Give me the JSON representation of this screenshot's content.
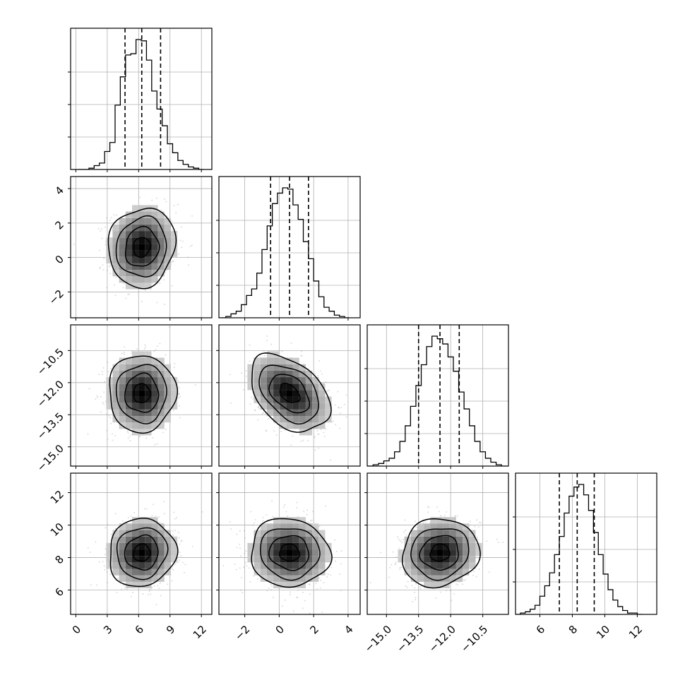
{
  "colors": {
    "frame": "#000000",
    "grid": "#b0b0b0",
    "hist": "#000000",
    "points": "#9a9a9a",
    "density_max": "#000000"
  },
  "chart_data": {
    "type": "corner",
    "dimensions": 4,
    "grid": true,
    "parameters": [
      {
        "range": [
          -0.5,
          13.0
        ],
        "ticks": [
          0,
          3,
          6,
          9,
          12
        ],
        "tick_labels": [
          "0",
          "3",
          "6",
          "9",
          "12"
        ],
        "mean": 6.3,
        "sd": 1.6,
        "quantiles": [
          4.7,
          6.3,
          8.1
        ]
      },
      {
        "range": [
          -3.5,
          4.7
        ],
        "ticks": [
          -2,
          0,
          2,
          4
        ],
        "tick_labels": [
          "−2",
          "0",
          "2",
          "4"
        ],
        "mean": 0.6,
        "sd": 1.15,
        "quantiles": [
          -0.5,
          0.6,
          1.7
        ]
      },
      {
        "range": [
          -15.9,
          -9.3
        ],
        "ticks": [
          -15.0,
          -13.5,
          -12.0,
          -10.5
        ],
        "tick_labels": [
          "−15.0",
          "−13.5",
          "−12.0",
          "−10.5"
        ],
        "mean": -12.5,
        "sd": 0.9,
        "quantiles": [
          -13.5,
          -12.5,
          -11.6
        ]
      },
      {
        "range": [
          4.5,
          13.2
        ],
        "ticks": [
          6,
          8,
          10,
          12
        ],
        "tick_labels": [
          "6",
          "8",
          "10",
          "12"
        ],
        "mean": 8.3,
        "sd": 1.05,
        "quantiles": [
          7.2,
          8.3,
          9.35
        ]
      }
    ],
    "diagonal_histograms": [
      {
        "x_centers": [
          0.5,
          1.0,
          1.5,
          2.0,
          2.5,
          3.0,
          3.5,
          4.0,
          4.5,
          5.0,
          5.5,
          6.0,
          6.5,
          7.0,
          7.5,
          8.0,
          8.5,
          9.0,
          9.5,
          10.0,
          10.5,
          11.0,
          11.5,
          12.0
        ],
        "counts": [
          0,
          0,
          1,
          3,
          5,
          14,
          21,
          50,
          72,
          89,
          90,
          101,
          100,
          85,
          61,
          47,
          34,
          20,
          13,
          7,
          4,
          2,
          1,
          0
        ]
      },
      {
        "x_centers": [
          -3.25,
          -2.95,
          -2.65,
          -2.35,
          -2.05,
          -1.75,
          -1.45,
          -1.15,
          -0.85,
          -0.55,
          -0.25,
          0.05,
          0.35,
          0.65,
          0.95,
          1.25,
          1.55,
          1.85,
          2.15,
          2.45,
          2.75,
          3.05,
          3.35,
          3.65,
          3.95
        ],
        "counts": [
          0,
          1,
          3,
          5,
          10,
          17,
          22,
          34,
          52,
          70,
          87,
          95,
          99,
          98,
          86,
          75,
          58,
          45,
          28,
          16,
          8,
          5,
          2,
          1,
          0
        ]
      },
      {
        "x_centers": [
          -15.75,
          -15.5,
          -15.25,
          -15.0,
          -14.75,
          -14.5,
          -14.25,
          -14.0,
          -13.75,
          -13.5,
          -13.25,
          -13.0,
          -12.75,
          -12.5,
          -12.25,
          -12.0,
          -11.75,
          -11.5,
          -11.25,
          -11.0,
          -10.75,
          -10.5,
          -10.25,
          -10.0,
          -9.75,
          -9.5
        ],
        "counts": [
          0,
          1,
          2,
          4,
          6,
          11,
          19,
          31,
          46,
          62,
          78,
          92,
          100,
          98,
          94,
          84,
          73,
          57,
          44,
          31,
          19,
          11,
          6,
          3,
          1,
          0
        ]
      },
      {
        "x_centers": [
          4.65,
          4.95,
          5.25,
          5.55,
          5.85,
          6.15,
          6.45,
          6.75,
          7.05,
          7.35,
          7.65,
          7.95,
          8.25,
          8.55,
          8.85,
          9.15,
          9.45,
          9.75,
          10.05,
          10.35,
          10.65,
          10.95,
          11.25,
          11.55,
          11.85,
          12.15
        ],
        "counts": [
          0,
          1,
          2,
          4,
          7,
          14,
          22,
          32,
          46,
          60,
          78,
          91,
          98,
          100,
          92,
          80,
          63,
          46,
          31,
          19,
          11,
          6,
          3,
          1,
          1,
          0
        ]
      }
    ],
    "correlations": {
      "1-0": 0.08,
      "2-0": 0.0,
      "2-1": -0.4,
      "3-0": 0.06,
      "3-1": -0.05,
      "3-2": 0.08
    }
  }
}
